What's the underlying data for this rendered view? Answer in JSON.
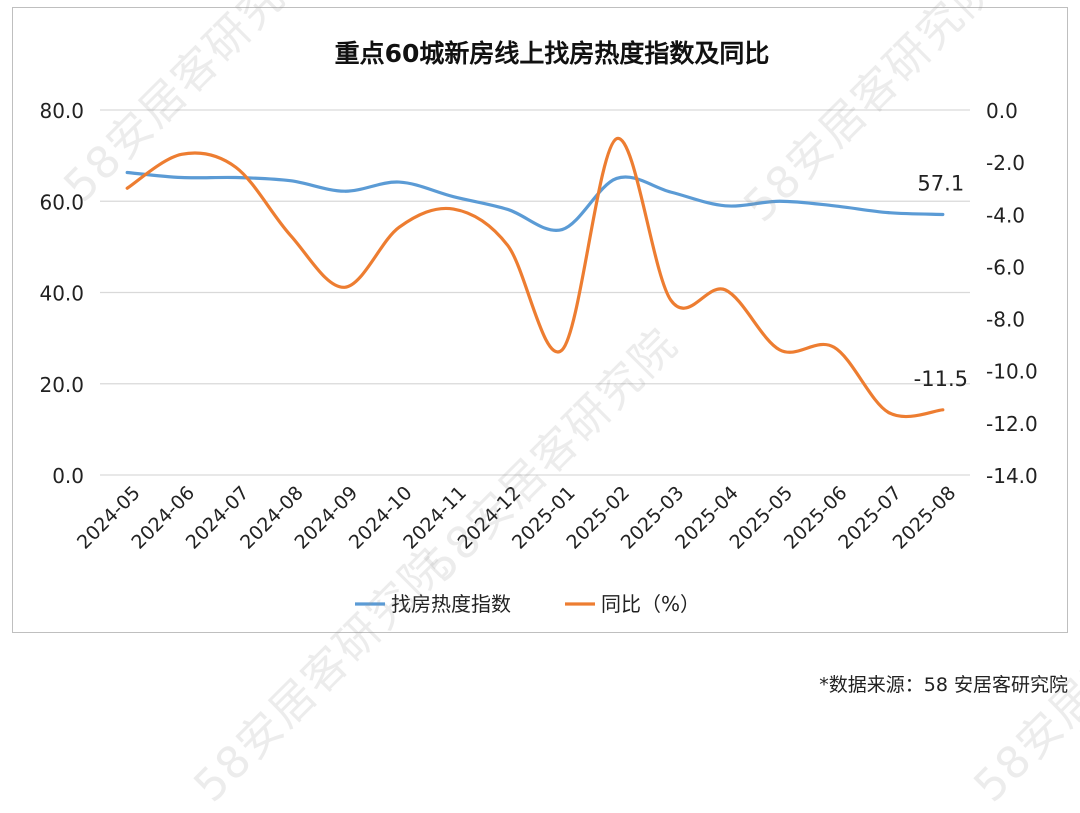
{
  "source_note": "*数据来源：58 安居客研究院",
  "watermark": "58安居客研究院",
  "chart_data": {
    "type": "line",
    "title": "重点60城新房线上找房热度指数及同比",
    "categories": [
      "2024-05",
      "2024-06",
      "2024-07",
      "2024-08",
      "2024-09",
      "2024-10",
      "2024-11",
      "2024-12",
      "2025-01",
      "2025-02",
      "2025-03",
      "2025-04",
      "2025-05",
      "2025-06",
      "2025-07",
      "2025-08"
    ],
    "y_left": {
      "min": 0,
      "max": 80,
      "ticks": [
        "0.0",
        "20.0",
        "40.0",
        "60.0",
        "80.0"
      ]
    },
    "y_right": {
      "min": -14,
      "max": 0,
      "ticks": [
        "0.0",
        "-2.0",
        "-4.0",
        "-6.0",
        "-8.0",
        "-10.0",
        "-12.0",
        "-14.0"
      ]
    },
    "grid": true,
    "legend_position": "bottom",
    "series": [
      {
        "name": "找房热度指数",
        "axis": "left",
        "color": "#5b9bd5",
        "values": [
          66.3,
          65.2,
          65.2,
          64.5,
          62.2,
          64.2,
          61.0,
          58.2,
          53.8,
          65.0,
          62.0,
          59.0,
          60.0,
          59.0,
          57.5,
          57.1
        ],
        "last_label": "57.1"
      },
      {
        "name": "同比（%）",
        "axis": "right",
        "color": "#ed7d31",
        "values": [
          -3.0,
          -1.7,
          -2.2,
          -4.8,
          -6.8,
          -4.5,
          -3.8,
          -5.2,
          -9.2,
          -1.1,
          -7.3,
          -6.9,
          -9.2,
          -9.1,
          -11.6,
          -11.5
        ],
        "last_label": "-11.5"
      }
    ]
  }
}
